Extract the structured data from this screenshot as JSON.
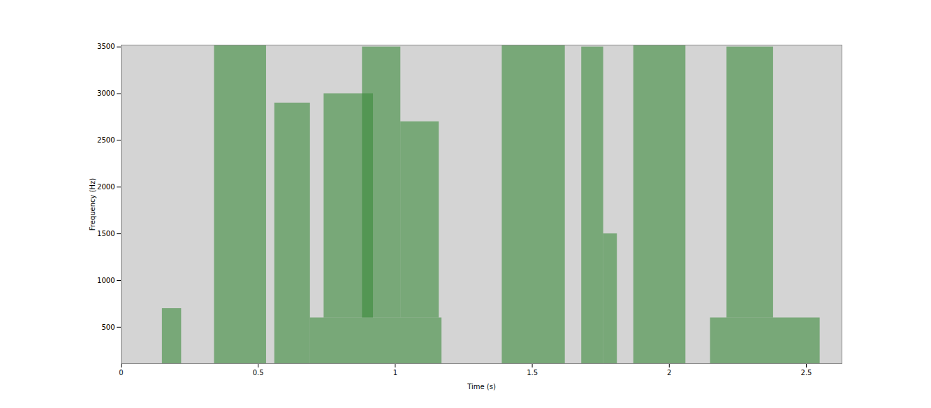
{
  "chart_data": {
    "type": "spectrogram",
    "xlabel": "Time (s)",
    "ylabel": "Frequency (Hz)",
    "xlim": [
      0,
      2.63
    ],
    "ylim": [
      110,
      3520
    ],
    "xticks": [
      0,
      0.5,
      1,
      1.5,
      2,
      2.5
    ],
    "yticks": [
      500,
      1000,
      1500,
      2000,
      2500,
      3000,
      3500
    ],
    "color": "#3a8a3a",
    "segments": [
      {
        "t0": 0.15,
        "t1": 0.22,
        "f0": 110,
        "f1": 700
      },
      {
        "t0": 0.34,
        "t1": 0.53,
        "f0": 110,
        "f1": 3520
      },
      {
        "t0": 0.56,
        "t1": 0.69,
        "f0": 110,
        "f1": 2900
      },
      {
        "t0": 0.69,
        "t1": 1.17,
        "f0": 110,
        "f1": 600
      },
      {
        "t0": 0.74,
        "t1": 0.92,
        "f0": 600,
        "f1": 3000
      },
      {
        "t0": 0.88,
        "t1": 1.02,
        "f0": 600,
        "f1": 3500
      },
      {
        "t0": 1.02,
        "t1": 1.16,
        "f0": 600,
        "f1": 2700
      },
      {
        "t0": 1.39,
        "t1": 1.62,
        "f0": 110,
        "f1": 3520
      },
      {
        "t0": 1.68,
        "t1": 1.76,
        "f0": 110,
        "f1": 3500
      },
      {
        "t0": 1.76,
        "t1": 1.81,
        "f0": 110,
        "f1": 1500
      },
      {
        "t0": 1.87,
        "t1": 2.06,
        "f0": 110,
        "f1": 3520
      },
      {
        "t0": 2.15,
        "t1": 2.55,
        "f0": 110,
        "f1": 600
      },
      {
        "t0": 2.21,
        "t1": 2.38,
        "f0": 600,
        "f1": 3500
      }
    ]
  }
}
